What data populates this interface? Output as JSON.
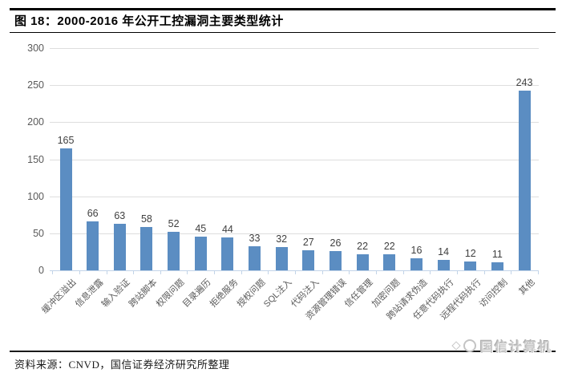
{
  "header": {
    "title": "图 18：2000-2016 年公开工控漏洞主要类型统计"
  },
  "chart_data": {
    "type": "bar",
    "title": "图 18：2000-2016 年公开工控漏洞主要类型统计",
    "categories": [
      "缓冲区溢出",
      "信息泄露",
      "输入验证",
      "跨站脚本",
      "权限问题",
      "目录遍历",
      "拒绝服务",
      "授权问题",
      "SQL注入",
      "代码注入",
      "资源管理错误",
      "信任管理",
      "加密问题",
      "跨站请求伪造",
      "任意代码执行",
      "远程代码执行",
      "访问控制",
      "其他"
    ],
    "values": [
      165,
      66,
      63,
      58,
      52,
      45,
      44,
      33,
      32,
      27,
      26,
      22,
      22,
      16,
      14,
      12,
      11,
      243
    ],
    "xlabel": "",
    "ylabel": "",
    "ylim": [
      0,
      300
    ],
    "ytick_interval": 50,
    "yticks": [
      0,
      50,
      100,
      150,
      200,
      250,
      300
    ],
    "grid": true,
    "legend": "none",
    "data_labels": true,
    "bar_color": "#5b8dc2",
    "value_label_color": "#3f3f3f",
    "tick_label_color": "#595959",
    "gridline_color": "#dedede",
    "axis_line_color": "#c2d4e8"
  },
  "footer": {
    "source": "资料来源：CNVD，国信证券经济研究所整理",
    "watermark": "国信计算机"
  }
}
